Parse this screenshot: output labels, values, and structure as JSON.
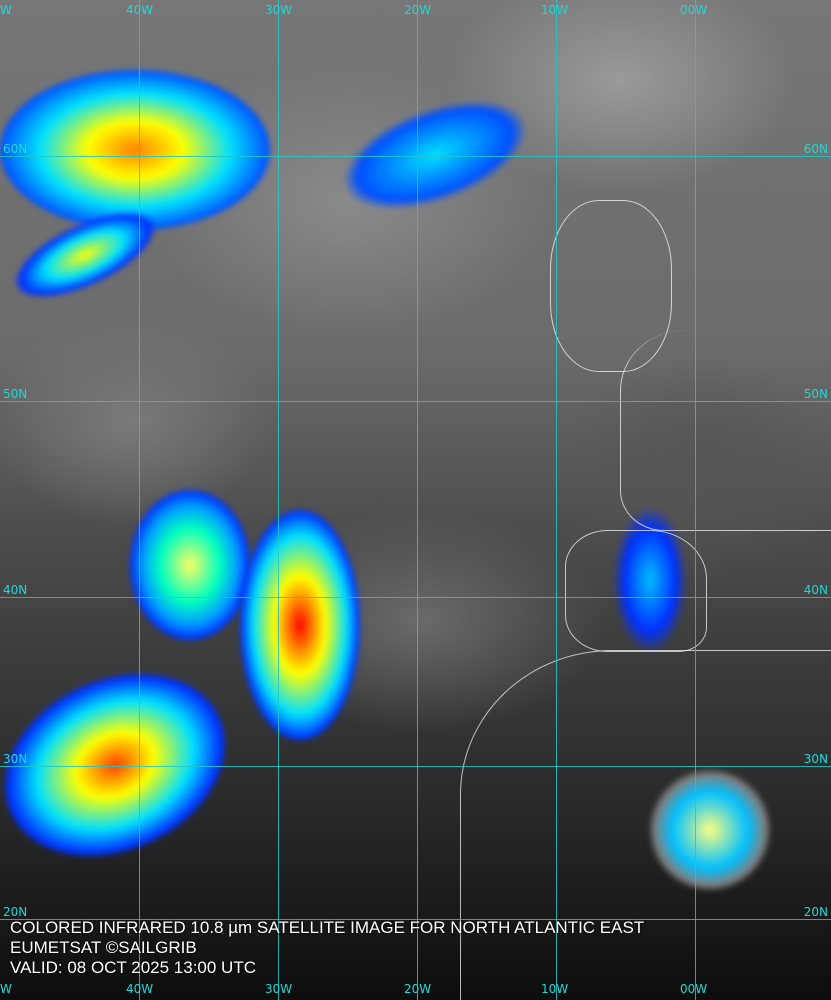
{
  "caption": {
    "line1": "COLORED INFRARED 10.8 µm SATELLITE IMAGE FOR NORTH ATLANTIC EAST",
    "line2": "EUMETSAT ©SAILGRIB",
    "line3": "VALID:  08 OCT 2025 13:00 UTC"
  },
  "grid": {
    "top_labels": [
      "W",
      "40W",
      "30W",
      "20W",
      "10W",
      "00W"
    ],
    "bottom_labels": [
      "W",
      "40W",
      "30W",
      "20W",
      "10W",
      "00W"
    ],
    "left_labels": [
      "60N",
      "50N",
      "40N",
      "30N",
      "20N"
    ],
    "right_labels": [
      "60N",
      "50N",
      "40N",
      "30N",
      "20N"
    ]
  },
  "colors": {
    "grid": "#1fc8c8",
    "cold_cloud_scale": [
      "#0000ff",
      "#00c0ff",
      "#00ffc0",
      "#ffff00",
      "#ff8000",
      "#ff0000"
    ]
  }
}
